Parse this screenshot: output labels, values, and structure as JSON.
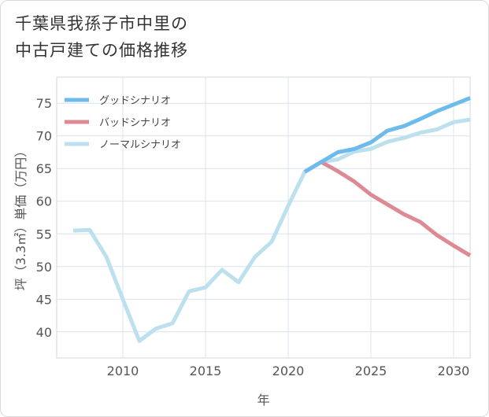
{
  "title": {
    "line1": "千葉県我孫子市中里の",
    "line2": "中古戸建ての価格推移"
  },
  "colors": {
    "good": "#6dbaed",
    "bad": "#de8a95",
    "normal": "#bde0ef",
    "grid": "#d8e4ee",
    "tick_text": "#555555"
  },
  "chart_data": {
    "type": "line",
    "xlabel": "年",
    "ylabel": "坪（3.3㎡）単価（万円）",
    "xlim": [
      2006,
      2031
    ],
    "ylim": [
      36,
      79
    ],
    "xticks": [
      2010,
      2015,
      2020,
      2025,
      2030
    ],
    "yticks": [
      40,
      45,
      50,
      55,
      60,
      65,
      70,
      75
    ],
    "grid": true,
    "legend_position": "top-left",
    "series": [
      {
        "key": "good",
        "name": "グッドシナリオ",
        "x": [
          2021,
          2022,
          2023,
          2024,
          2025,
          2026,
          2027,
          2028,
          2029,
          2030,
          2031
        ],
        "values": [
          64.5,
          66.0,
          67.5,
          68.0,
          69.0,
          70.8,
          71.5,
          72.6,
          73.8,
          74.8,
          75.8
        ]
      },
      {
        "key": "bad",
        "name": "バッドシナリオ",
        "x": [
          2021,
          2022,
          2023,
          2024,
          2025,
          2026,
          2027,
          2028,
          2029,
          2030,
          2031
        ],
        "values": [
          64.5,
          66.0,
          64.6,
          63.0,
          61.0,
          59.5,
          58.0,
          56.8,
          54.8,
          53.2,
          51.7
        ]
      },
      {
        "key": "normal",
        "name": "ノーマルシナリオ",
        "x": [
          2007,
          2008,
          2009,
          2010,
          2011,
          2012,
          2013,
          2014,
          2015,
          2016,
          2017,
          2018,
          2019,
          2020,
          2021,
          2022,
          2023,
          2024,
          2025,
          2026,
          2027,
          2028,
          2029,
          2030,
          2031
        ],
        "values": [
          55.5,
          55.6,
          51.5,
          45.0,
          38.6,
          40.5,
          41.3,
          46.2,
          46.8,
          49.5,
          47.6,
          51.5,
          53.8,
          59.3,
          64.5,
          66.0,
          66.4,
          67.6,
          68.0,
          69.1,
          69.7,
          70.5,
          71.0,
          72.1,
          72.5
        ]
      }
    ]
  }
}
